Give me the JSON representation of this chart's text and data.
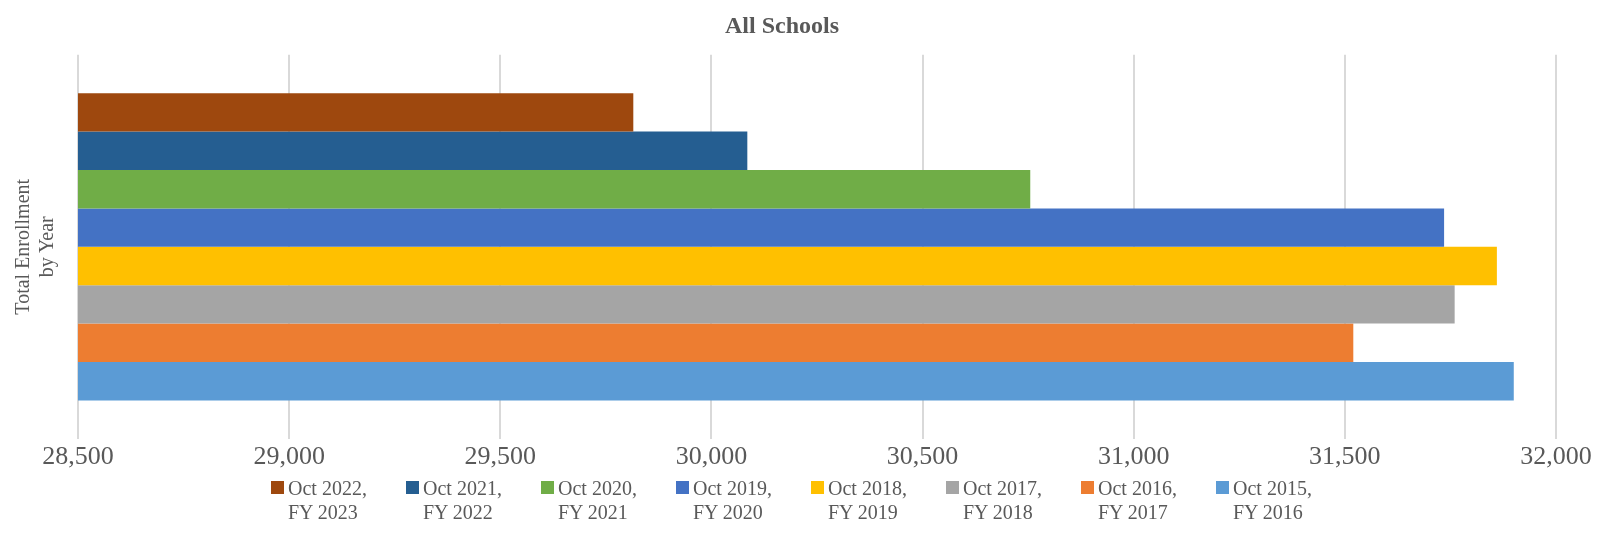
{
  "chart_data": {
    "type": "bar",
    "orientation": "horizontal",
    "title": "All Schools",
    "ylabel": "Total Enrollment by Year",
    "categories": [
      null
    ],
    "series": [
      {
        "name": "Oct 2022, FY 2023",
        "color": "#9e480e",
        "values": [
          29815
        ]
      },
      {
        "name": "Oct 2021, FY 2022",
        "color": "#255e91",
        "values": [
          30085
        ]
      },
      {
        "name": "Oct 2020, FY 2021",
        "color": "#70ad47",
        "values": [
          30755
        ]
      },
      {
        "name": "Oct 2019, FY 2020",
        "color": "#4472c4",
        "values": [
          31735
        ]
      },
      {
        "name": "Oct 2018, FY 2019",
        "color": "#ffc000",
        "values": [
          31860
        ]
      },
      {
        "name": "Oct 2017, FY 2018",
        "color": "#a5a5a5",
        "values": [
          31760
        ]
      },
      {
        "name": "Oct 2016, FY 2017",
        "color": "#ed7d31",
        "values": [
          31520
        ]
      },
      {
        "name": "Oct 2015, FY 2016",
        "color": "#5b9bd5",
        "values": [
          31900
        ]
      }
    ],
    "xlim": [
      28500,
      32000
    ],
    "xticks": [
      {
        "value": 28500,
        "label": "28,500"
      },
      {
        "value": 29000,
        "label": "29,000"
      },
      {
        "value": 29500,
        "label": "29,500"
      },
      {
        "value": 30000,
        "label": "30,000"
      },
      {
        "value": 30500,
        "label": "30,500"
      },
      {
        "value": 31000,
        "label": "31,000"
      },
      {
        "value": 31500,
        "label": "31,500"
      },
      {
        "value": 32000,
        "label": "32,000"
      }
    ],
    "grid": "x",
    "legend": "bottom"
  }
}
